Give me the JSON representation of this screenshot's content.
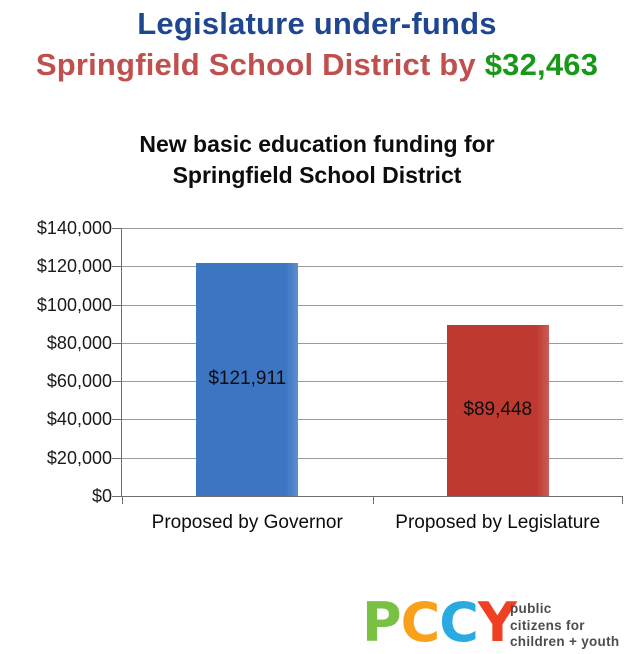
{
  "heading": {
    "line1": "Legislature under-funds",
    "line1_color": "#1f4690",
    "line2_red": "Springfield School District by",
    "line2_red_color": "#c0504d",
    "line2_green": "$32,463",
    "line2_green_color": "#179917"
  },
  "chart_data": {
    "type": "bar",
    "title": "New basic education funding for Springfield School District",
    "title_lines": [
      "New basic education funding for",
      "Springfield School District"
    ],
    "categories": [
      "Proposed by Governor",
      "Proposed by Legislature"
    ],
    "values": [
      121911,
      89448
    ],
    "value_labels": [
      "$121,911",
      "$89,448"
    ],
    "bar_colors": [
      "#3c76c3",
      "#be3a31"
    ],
    "xlabel": "",
    "ylabel": "",
    "ylim": [
      0,
      140000
    ],
    "ytick_step": 20000,
    "ytick_labels": [
      "$0",
      "$20,000",
      "$40,000",
      "$60,000",
      "$80,000",
      "$100,000",
      "$120,000",
      "$140,000"
    ],
    "grid": "horizontal",
    "legend_position": "none"
  },
  "logo": {
    "letters": [
      {
        "char": "P",
        "color": "#7ac143"
      },
      {
        "char": "C",
        "color": "#f9a11b"
      },
      {
        "char": "C",
        "color": "#29aae1"
      },
      {
        "char": "Y",
        "color": "#ef4023"
      }
    ],
    "tagline_lines": [
      "public",
      "citizens for",
      "children + youth"
    ],
    "tagline_color": "#4d4d4f"
  }
}
